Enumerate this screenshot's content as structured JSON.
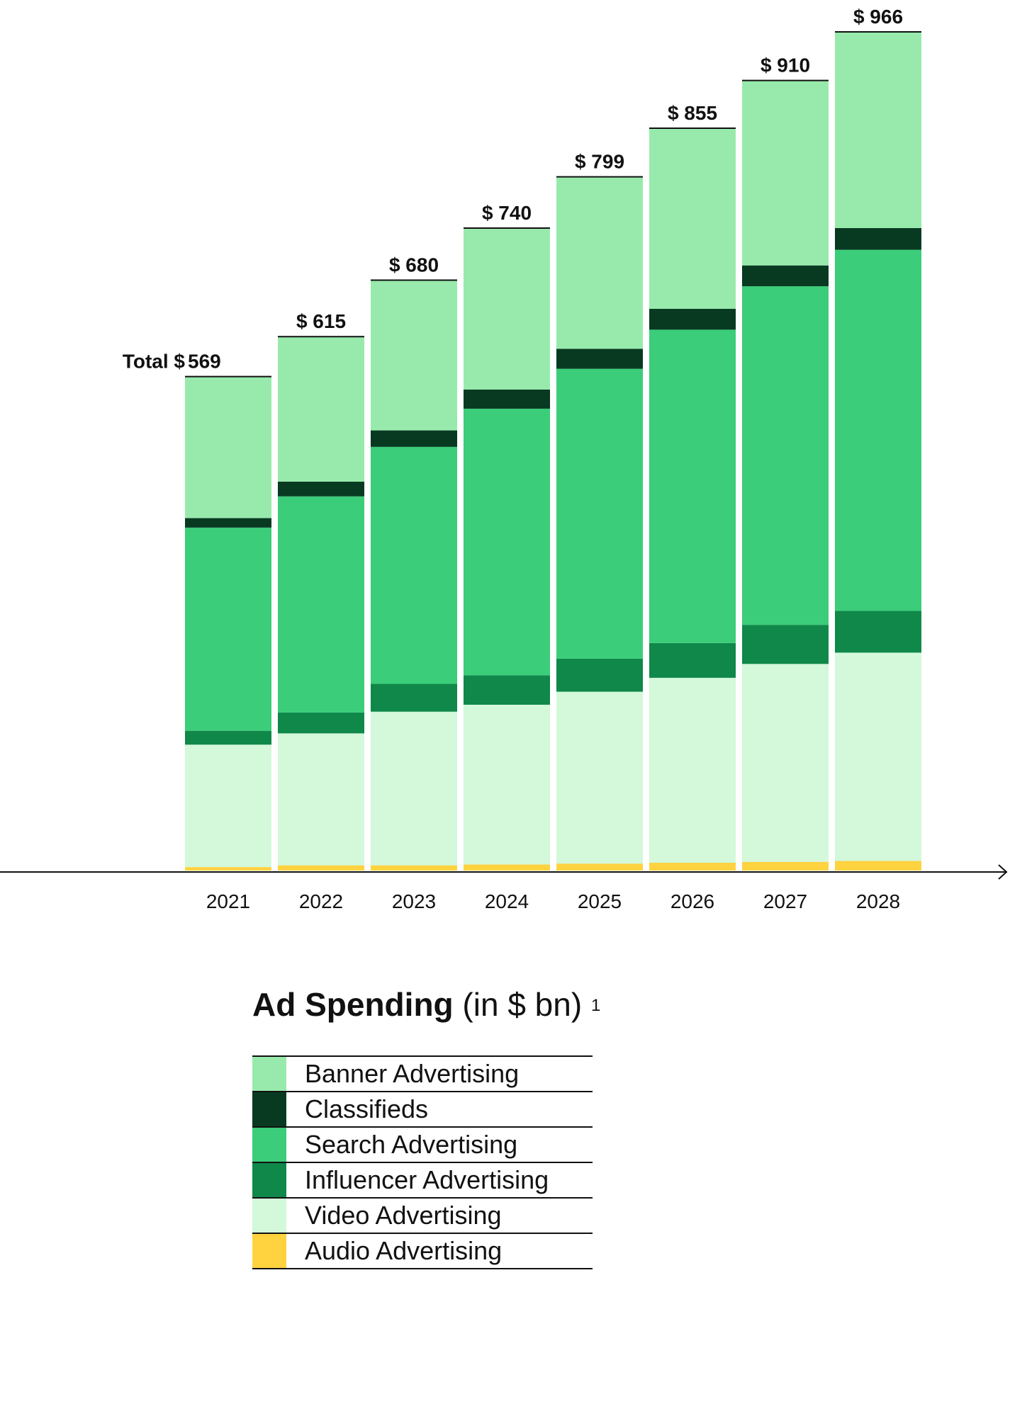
{
  "chart_data": {
    "type": "bar",
    "stacked": true,
    "categories": [
      "2021",
      "2022",
      "2023",
      "2024",
      "2025",
      "2026",
      "2027",
      "2028"
    ],
    "totals": [
      569,
      615,
      680,
      740,
      799,
      855,
      910,
      966
    ],
    "total_prefix": "Total",
    "currency": "$",
    "series": [
      {
        "name": "Audio Advertising",
        "color": "#ffd23f",
        "values": [
          4,
          6,
          6,
          7,
          8,
          9,
          10,
          11
        ]
      },
      {
        "name": "Video Advertising",
        "color": "#d3f8da",
        "values": [
          141,
          152,
          177,
          184,
          198,
          213,
          228,
          240
        ]
      },
      {
        "name": "Influencer Advertising",
        "color": "#0f884a",
        "values": [
          16,
          24,
          32,
          34,
          38,
          40,
          45,
          48
        ]
      },
      {
        "name": "Search Advertising",
        "color": "#3bcd79",
        "values": [
          234,
          249,
          273,
          307,
          334,
          361,
          390,
          416
        ]
      },
      {
        "name": "Classifieds",
        "color": "#083a22",
        "values": [
          11,
          17,
          19,
          22,
          23,
          24,
          24,
          25
        ]
      },
      {
        "name": "Banner Advertising",
        "color": "#98eaac",
        "values": [
          163,
          167,
          173,
          186,
          198,
          208,
          213,
          226
        ]
      }
    ],
    "legend_order": [
      "Banner Advertising",
      "Classifieds",
      "Search Advertising",
      "Influencer Advertising",
      "Video Advertising",
      "Audio Advertising"
    ],
    "ylim": [
      0,
      966
    ],
    "grid": false,
    "legend_position": "bottom"
  },
  "legend": {
    "title_main": "Ad Spending",
    "title_unit": "(in $ bn)",
    "title_footnote": "1"
  }
}
